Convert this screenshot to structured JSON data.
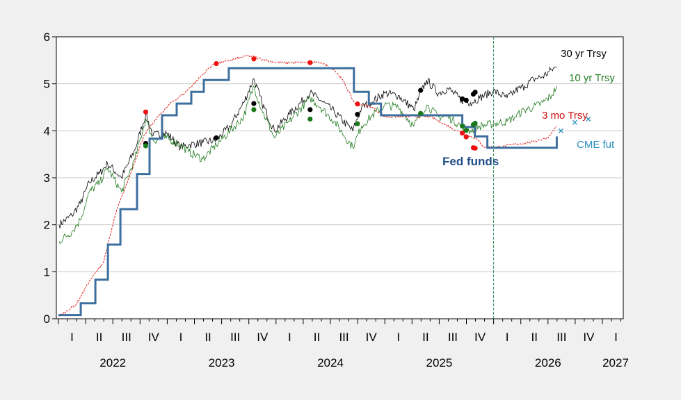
{
  "chart_data": {
    "type": "line",
    "ylim": [
      0,
      6
    ],
    "yticks": [
      "0",
      "1",
      "2",
      "3",
      "4",
      "5",
      "6"
    ],
    "quarter_labels": [
      "I",
      "II",
      "III",
      "IV",
      "I",
      "II",
      "III",
      "IV",
      "I",
      "II",
      "III",
      "IV",
      "I",
      "II",
      "III",
      "IV",
      "I",
      "II",
      "III",
      "IV",
      "I"
    ],
    "year_labels": [
      "2022",
      "2023",
      "2024",
      "2025",
      "2026",
      "2027"
    ],
    "grid": "horizontal",
    "vertical_marker_date": "2026-01-01",
    "colors": {
      "t30": "#000000",
      "t10": "#1f7a1f",
      "t3m": "#e01010",
      "fedfunds": "#3d6f9e",
      "cme": "#2a8fc0",
      "vline": "#2e8b57"
    },
    "series_labels": {
      "t30": "30 yr Trsy",
      "t10": "10 yr Trsy",
      "t3m": "3 mo Trsy",
      "cme": "CME fut",
      "fedfunds": "Fed funds"
    },
    "series": [
      {
        "key": "t30",
        "name": "30 yr Trsy",
        "x": [
          "2022-01-03",
          "2022-02-15",
          "2022-03-15",
          "2022-04-15",
          "2022-05-20",
          "2022-06-15",
          "2022-08-01",
          "2022-09-15",
          "2022-10-21",
          "2022-11-15",
          "2022-12-30",
          "2023-02-15",
          "2023-03-15",
          "2023-05-01",
          "2023-06-15",
          "2023-08-01",
          "2023-09-15",
          "2023-10-19",
          "2023-11-15",
          "2023-12-27",
          "2024-02-15",
          "2024-04-25",
          "2024-05-30",
          "2024-07-15",
          "2024-09-15",
          "2024-10-15",
          "2024-11-15",
          "2024-12-31",
          "2025-02-15",
          "2025-04-08",
          "2025-05-21",
          "2025-06-30",
          "2025-08-01",
          "2025-09-15",
          "2025-10-15",
          "2025-11-15",
          "2025-12-31",
          "2026-02-15",
          "2026-03-15",
          "2026-04-15",
          "2026-05-15",
          "2026-06-15",
          "2026-07-15",
          "2026-08-01"
        ],
        "values": [
          2.0,
          2.2,
          2.45,
          2.9,
          3.1,
          3.3,
          3.0,
          3.6,
          4.35,
          3.9,
          3.95,
          3.65,
          3.7,
          3.75,
          3.8,
          4.1,
          4.6,
          5.11,
          4.6,
          4.0,
          4.35,
          4.8,
          4.65,
          4.4,
          4.0,
          4.5,
          4.6,
          4.8,
          4.75,
          4.45,
          5.08,
          4.8,
          4.9,
          4.65,
          4.6,
          4.7,
          4.85,
          4.7,
          4.85,
          4.95,
          5.1,
          5.15,
          5.3,
          5.35
        ]
      },
      {
        "key": "t10",
        "name": "10 yr Trsy",
        "x": [
          "2022-01-03",
          "2022-02-15",
          "2022-03-15",
          "2022-04-15",
          "2022-05-20",
          "2022-06-15",
          "2022-08-01",
          "2022-09-15",
          "2022-10-21",
          "2022-11-15",
          "2022-12-30",
          "2023-02-15",
          "2023-03-15",
          "2023-05-01",
          "2023-06-15",
          "2023-08-01",
          "2023-09-15",
          "2023-10-19",
          "2023-11-15",
          "2023-12-27",
          "2024-02-15",
          "2024-04-25",
          "2024-05-30",
          "2024-07-15",
          "2024-09-15",
          "2024-10-15",
          "2024-11-15",
          "2024-12-31",
          "2025-02-15",
          "2025-04-08",
          "2025-05-21",
          "2025-06-30",
          "2025-08-01",
          "2025-09-15",
          "2025-10-15",
          "2025-11-15",
          "2025-12-31",
          "2026-02-15",
          "2026-03-15",
          "2026-04-15",
          "2026-05-15",
          "2026-06-15",
          "2026-07-15",
          "2026-08-01"
        ],
        "values": [
          1.65,
          1.85,
          2.1,
          2.7,
          2.9,
          3.2,
          2.7,
          3.4,
          4.25,
          3.8,
          3.85,
          3.7,
          3.55,
          3.4,
          3.7,
          4.0,
          4.3,
          4.95,
          4.45,
          3.85,
          4.2,
          4.7,
          4.5,
          4.2,
          3.65,
          4.1,
          4.3,
          4.55,
          4.5,
          4.1,
          4.55,
          4.3,
          4.3,
          4.1,
          4.0,
          4.1,
          4.15,
          4.2,
          4.3,
          4.45,
          4.5,
          4.6,
          4.75,
          4.95
        ]
      },
      {
        "key": "t3m",
        "name": "3 mo Trsy",
        "x": [
          "2022-01-03",
          "2022-03-01",
          "2022-04-15",
          "2022-06-01",
          "2022-07-15",
          "2022-09-01",
          "2022-10-15",
          "2022-12-01",
          "2023-01-15",
          "2023-03-01",
          "2023-04-15",
          "2023-06-01",
          "2023-08-01",
          "2023-10-01",
          "2024-01-01",
          "2024-04-01",
          "2024-06-01",
          "2024-07-15",
          "2024-08-15",
          "2024-09-20",
          "2024-10-15",
          "2024-11-20",
          "2024-12-31",
          "2025-03-01",
          "2025-06-01",
          "2025-09-01",
          "2025-10-01",
          "2025-11-01",
          "2025-12-01",
          "2026-01-15",
          "2026-03-01",
          "2026-05-01",
          "2026-07-01",
          "2026-08-01"
        ],
        "values": [
          0.05,
          0.3,
          0.8,
          1.2,
          2.3,
          3.1,
          3.9,
          4.3,
          4.6,
          4.8,
          5.1,
          5.4,
          5.5,
          5.6,
          5.45,
          5.45,
          5.45,
          5.3,
          5.05,
          4.6,
          4.55,
          4.5,
          4.3,
          4.3,
          4.3,
          4.0,
          3.9,
          3.85,
          3.65,
          3.65,
          3.7,
          3.75,
          3.85,
          4.1
        ]
      },
      {
        "key": "fedfunds",
        "name": "Fed funds",
        "x": [
          "2022-01-01",
          "2022-03-17",
          "2022-05-05",
          "2022-06-16",
          "2022-07-28",
          "2022-09-22",
          "2022-11-03",
          "2022-12-15",
          "2023-02-02",
          "2023-03-23",
          "2023-05-04",
          "2023-07-27",
          "2024-09-19",
          "2024-11-08",
          "2024-12-19",
          "2025-09-18",
          "2025-10-30",
          "2025-12-11",
          "2026-08-01"
        ],
        "values": [
          0.08,
          0.33,
          0.83,
          1.58,
          2.33,
          3.08,
          3.83,
          4.33,
          4.58,
          4.83,
          5.08,
          5.33,
          4.83,
          4.58,
          4.33,
          4.08,
          3.88,
          3.64,
          3.88
        ]
      },
      {
        "key": "cme",
        "name": "CME fut",
        "x": [
          "2026-08-15",
          "2026-10-01",
          "2026-11-15"
        ],
        "values": [
          4.0,
          4.18,
          4.25
        ]
      }
    ],
    "dots": [
      {
        "key": "t30",
        "x": "2022-10-21",
        "y": 3.73
      },
      {
        "key": "t30",
        "x": "2023-06-15",
        "y": 3.85
      },
      {
        "key": "t30",
        "x": "2023-10-19",
        "y": 4.58
      },
      {
        "key": "t30",
        "x": "2024-04-25",
        "y": 4.45
      },
      {
        "key": "t30",
        "x": "2024-10-01",
        "y": 4.35
      },
      {
        "key": "t30",
        "x": "2025-05-01",
        "y": 4.86
      },
      {
        "key": "t30",
        "x": "2025-09-18",
        "y": 4.68
      },
      {
        "key": "t30",
        "x": "2025-10-01",
        "y": 4.65
      },
      {
        "key": "t30",
        "x": "2025-10-25",
        "y": 4.78
      },
      {
        "key": "t30",
        "x": "2025-10-31",
        "y": 4.82
      },
      {
        "key": "t10",
        "x": "2022-10-21",
        "y": 3.68
      },
      {
        "key": "t10",
        "x": "2023-10-19",
        "y": 4.45
      },
      {
        "key": "t10",
        "x": "2024-04-25",
        "y": 4.25
      },
      {
        "key": "t10",
        "x": "2024-10-01",
        "y": 4.15
      },
      {
        "key": "t10",
        "x": "2025-05-01",
        "y": 4.37
      },
      {
        "key": "t10",
        "x": "2025-09-18",
        "y": 4.1
      },
      {
        "key": "t10",
        "x": "2025-10-01",
        "y": 4.01
      },
      {
        "key": "t10",
        "x": "2025-10-25",
        "y": 4.13
      },
      {
        "key": "t10",
        "x": "2025-10-31",
        "y": 4.16
      },
      {
        "key": "t3m",
        "x": "2022-10-21",
        "y": 4.4
      },
      {
        "key": "t3m",
        "x": "2023-06-15",
        "y": 5.43
      },
      {
        "key": "t3m",
        "x": "2023-10-19",
        "y": 5.53
      },
      {
        "key": "t3m",
        "x": "2024-04-25",
        "y": 5.45
      },
      {
        "key": "t3m",
        "x": "2024-10-01",
        "y": 4.57
      },
      {
        "key": "t3m",
        "x": "2025-09-18",
        "y": 3.95
      },
      {
        "key": "t3m",
        "x": "2025-10-01",
        "y": 3.87
      },
      {
        "key": "t3m",
        "x": "2025-10-25",
        "y": 3.64
      },
      {
        "key": "t3m",
        "x": "2025-10-31",
        "y": 3.63
      }
    ]
  }
}
